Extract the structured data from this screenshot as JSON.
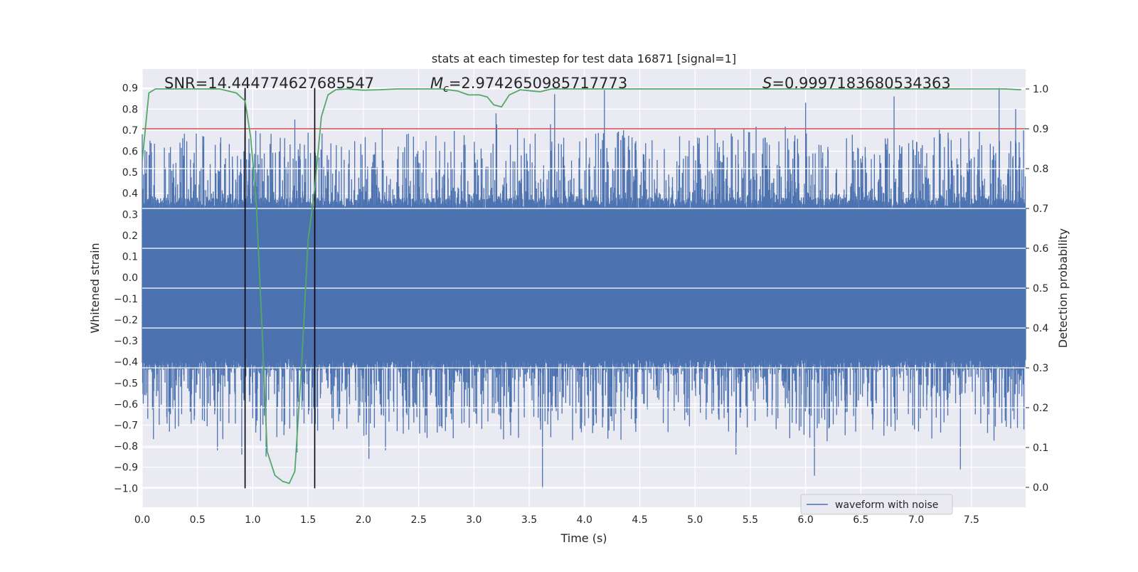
{
  "chart_data": {
    "type": "line",
    "title": "stats at each timestep for test data 16871 [signal=1]",
    "xlabel": "Time (s)",
    "ylabel": "Whitened strain",
    "y2label": "Detection probability",
    "xlim": [
      0.0,
      7.99
    ],
    "ylim": [
      -1.09,
      0.99
    ],
    "y2lim": [
      -0.05,
      1.05
    ],
    "x_ticks": [
      "0.0",
      "0.5",
      "1.0",
      "1.5",
      "2.0",
      "2.5",
      "3.0",
      "3.5",
      "4.0",
      "4.5",
      "5.0",
      "5.5",
      "6.0",
      "6.5",
      "7.0",
      "7.5"
    ],
    "y_ticks": [
      "0.9",
      "0.8",
      "0.7",
      "0.6",
      "0.5",
      "0.4",
      "0.3",
      "0.2",
      "0.1",
      "0.0",
      "−0.1",
      "−0.2",
      "−0.3",
      "−0.4",
      "−0.5",
      "−0.6",
      "−0.7",
      "−0.8",
      "−0.9",
      "−1.0"
    ],
    "y2_ticks": [
      "1.0",
      "0.9",
      "0.8",
      "0.7",
      "0.6",
      "0.5",
      "0.4",
      "0.3",
      "0.2",
      "0.1",
      "0.0"
    ],
    "grid": true,
    "legend_position": "lower-right",
    "annotations": {
      "snr": "SNR=14.444774627685547",
      "mc_prefix": "M",
      "mc_sub": "c",
      "mc_value": "=2.9742650985717773",
      "s_prefix": "S",
      "s_value": "=0.9997183680534363"
    },
    "threshold_line": {
      "y2": 0.9,
      "color": "#c44e52"
    },
    "vertical_markers": [
      {
        "x": 0.93,
        "y_from": -1.0,
        "y_to": 0.9
      },
      {
        "x": 1.56,
        "y_from": -1.0,
        "y_to": 0.9
      }
    ],
    "series": [
      {
        "name": "waveform with noise",
        "axis": "left",
        "color": "#4c72b0",
        "style": "dense noise waveform, bulk amplitude ~0.3-0.4, peaks to ~0.9 and troughs to ~-1.0",
        "peaks": [
          {
            "x": 0.0,
            "y": 0.68
          },
          {
            "x": 0.07,
            "y": 0.65
          },
          {
            "x": 0.66,
            "y": 0.63
          },
          {
            "x": 0.93,
            "y": 0.88
          },
          {
            "x": 1.38,
            "y": 0.75
          },
          {
            "x": 3.2,
            "y": 0.78
          },
          {
            "x": 3.73,
            "y": 0.87
          },
          {
            "x": 4.18,
            "y": 0.89
          },
          {
            "x": 6.0,
            "y": 0.83
          },
          {
            "x": 6.8,
            "y": 0.86
          },
          {
            "x": 7.75,
            "y": 0.9
          },
          {
            "x": 7.9,
            "y": 0.8
          }
        ],
        "troughs": [
          {
            "x": 0.05,
            "y": -0.67
          },
          {
            "x": 0.68,
            "y": -0.82
          },
          {
            "x": 0.9,
            "y": -0.84
          },
          {
            "x": 1.12,
            "y": -0.85
          },
          {
            "x": 1.4,
            "y": -0.83
          },
          {
            "x": 2.05,
            "y": -0.86
          },
          {
            "x": 2.2,
            "y": -0.82
          },
          {
            "x": 3.62,
            "y": -1.0
          },
          {
            "x": 4.33,
            "y": -0.77
          },
          {
            "x": 5.37,
            "y": -0.84
          },
          {
            "x": 6.08,
            "y": -0.94
          },
          {
            "x": 7.4,
            "y": -0.91
          }
        ]
      },
      {
        "name": "",
        "axis": "right",
        "color": "#55a868",
        "x": [
          0.0,
          0.06,
          0.12,
          0.2,
          0.3,
          0.5,
          0.7,
          0.85,
          0.93,
          0.98,
          1.03,
          1.08,
          1.13,
          1.2,
          1.27,
          1.33,
          1.38,
          1.44,
          1.5,
          1.56,
          1.62,
          1.68,
          1.75,
          1.85,
          2.0,
          2.15,
          2.3,
          2.5,
          2.7,
          2.85,
          2.95,
          3.05,
          3.12,
          3.18,
          3.25,
          3.32,
          3.42,
          3.52,
          3.6,
          3.7,
          3.8,
          3.9,
          4.2,
          5.0,
          6.0,
          7.0,
          7.6,
          7.8,
          7.95
        ],
        "values": [
          0.82,
          0.99,
          1.0,
          1.0,
          1.0,
          1.0,
          1.0,
          0.99,
          0.97,
          0.88,
          0.72,
          0.42,
          0.09,
          0.03,
          0.015,
          0.01,
          0.04,
          0.3,
          0.62,
          0.75,
          0.93,
          0.985,
          0.998,
          1.0,
          0.997,
          0.998,
          1.0,
          1.0,
          1.0,
          0.995,
          0.985,
          0.985,
          0.98,
          0.96,
          0.955,
          0.985,
          0.998,
          0.995,
          0.993,
          1.0,
          1.0,
          1.0,
          1.0,
          1.0,
          1.0,
          1.0,
          1.0,
          1.0,
          0.998
        ]
      }
    ]
  }
}
